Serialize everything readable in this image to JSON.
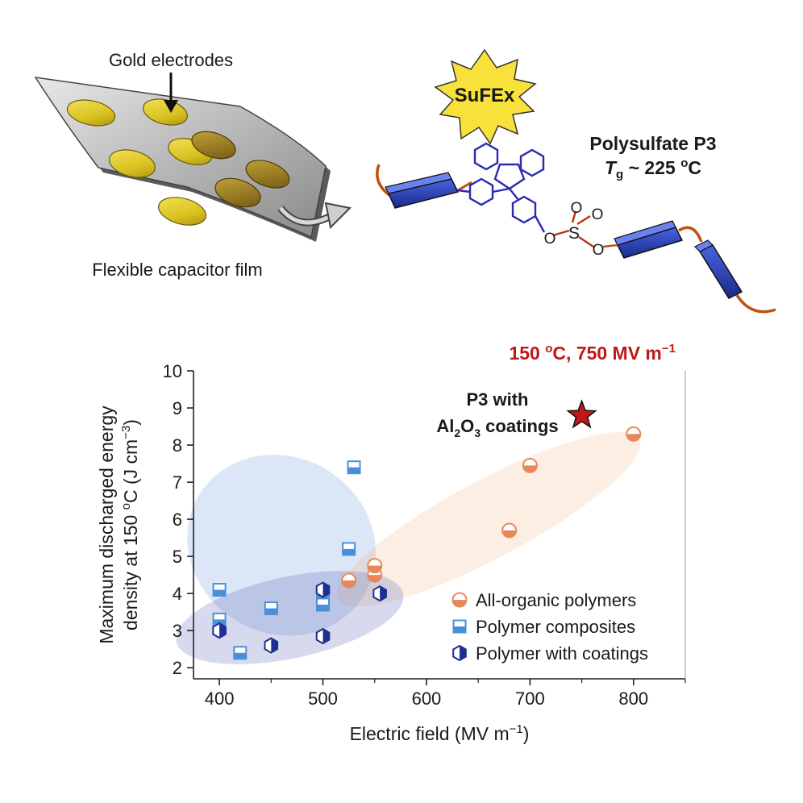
{
  "top_panel": {
    "electrode_label": "Gold electrodes",
    "film_label": "Flexible capacitor film",
    "sufex_label": "SuFEx",
    "polymer_name": "Polysulfate P3",
    "tg_symbol": "T",
    "tg_sub": "g",
    "tg_value": " ~ 225 ",
    "tg_deg": "o",
    "tg_unit": "C",
    "atom_o": "O",
    "atom_s": "S",
    "colors": {
      "sulfur": "#b8860b",
      "oxygen": "#d42020",
      "ring": "#2a2ab0",
      "chain": "#c05010",
      "block": "#2a3aa8",
      "burst": "#f7e13a"
    }
  },
  "chart_data": {
    "type": "scatter",
    "title": "150 oC, 750 MV m−1",
    "title_parts": {
      "pre": "150 ",
      "sup": "o",
      "mid": "C, 750 MV m",
      "sup2": "−1"
    },
    "title_color": "#c01818",
    "xlabel": "Electric field (MV m−1)",
    "xlabel_parts": {
      "pre": "Electric field (MV m",
      "sup": "−1",
      "post": ")"
    },
    "ylabel": "Maximum discharged energy density at 150 oC (J cm−3)",
    "ylabel_line1": "Maximum discharged energy",
    "ylabel_line2_parts": {
      "pre": "density at 150 ",
      "sup": "o",
      "mid": "C (J cm",
      "sup2": "−3",
      "post": ")"
    },
    "xlim": [
      375,
      850
    ],
    "ylim": [
      1.7,
      10
    ],
    "xticks": [
      400,
      500,
      600,
      700,
      800
    ],
    "yticks": [
      2,
      3,
      4,
      5,
      6,
      7,
      8,
      9,
      10
    ],
    "grid": false,
    "legend_position": "bottom-right",
    "series": [
      {
        "name": "All-organic polymers",
        "marker": "half-circle",
        "color": "#e8885a",
        "x": [
          525,
          550,
          550,
          680,
          700,
          800
        ],
        "y": [
          4.35,
          4.5,
          4.75,
          5.7,
          7.45,
          8.3
        ]
      },
      {
        "name": "Polymer composites",
        "marker": "half-square",
        "color": "#4a90d9",
        "x": [
          400,
          400,
          420,
          450,
          500,
          500,
          525,
          530
        ],
        "y": [
          4.1,
          3.3,
          2.4,
          3.6,
          3.7,
          4.05,
          5.2,
          7.4
        ]
      },
      {
        "name": "Polymer with coatings",
        "marker": "half-hexagon",
        "color": "#1f2f8f",
        "x": [
          400,
          450,
          500,
          500,
          555
        ],
        "y": [
          3.0,
          2.6,
          2.85,
          4.1,
          4.0
        ]
      }
    ],
    "star": {
      "x": 750,
      "y": 8.8,
      "color": "#c01818"
    },
    "annotation": {
      "line1": "P3 with",
      "l2a": "Al",
      "l2s1": "2",
      "l2b": "O",
      "l2s2": "3",
      "l2c": " coatings"
    },
    "ellipses": [
      {
        "name": "composites",
        "color": "#5b8fdc",
        "cx": 460,
        "cy": 5.3,
        "rx": 85,
        "ry": 2.6,
        "angle_deg": -58
      },
      {
        "name": "organic",
        "color": "#f2b07a",
        "cx": 660,
        "cy": 6.0,
        "rx": 165,
        "ry": 1.05,
        "angle_deg": -28
      },
      {
        "name": "coatings",
        "color": "#4a55b0",
        "cx": 468,
        "cy": 3.35,
        "rx": 112,
        "ry": 1.1,
        "angle_deg": -12
      }
    ]
  }
}
